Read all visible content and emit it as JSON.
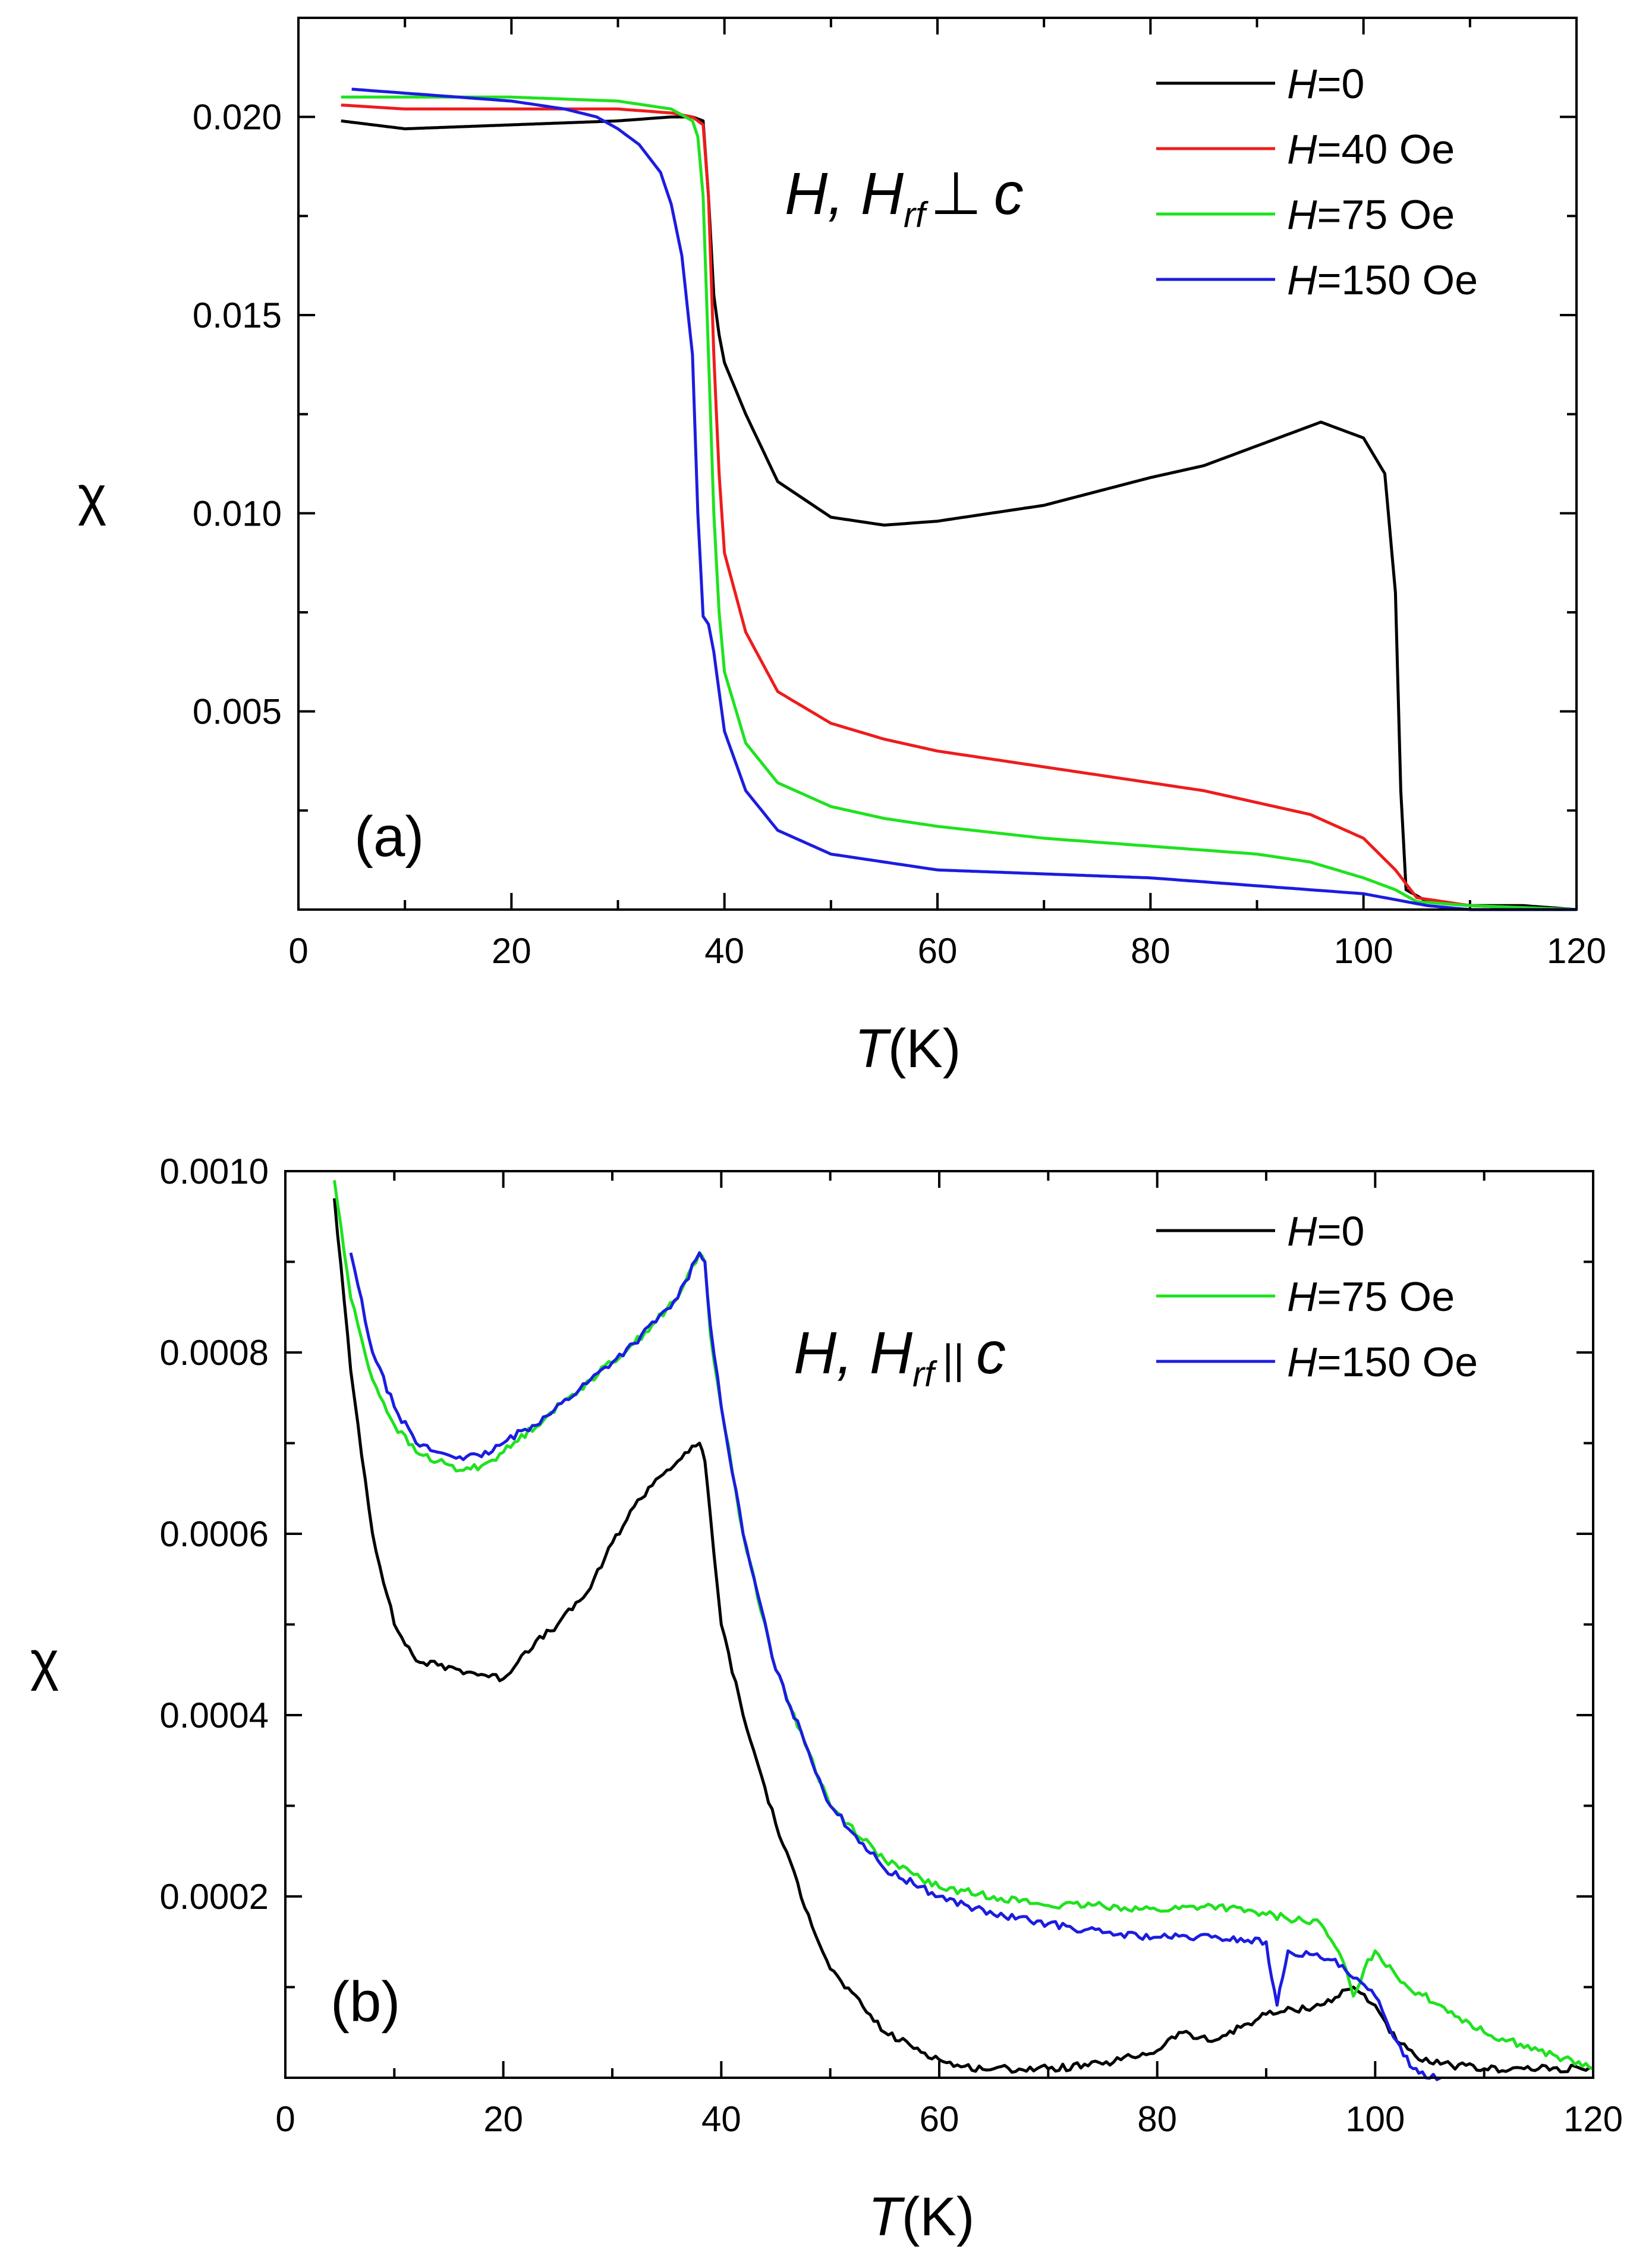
{
  "colors": {
    "black": "#000000",
    "red": "#ee1c1c",
    "green": "#1fe21f",
    "blue": "#1c1ce0"
  },
  "chart_data": [
    {
      "type": "line",
      "panel_label": "(a)",
      "annotation": {
        "H": "H, ",
        "Hsub": "H",
        "sub": "rf",
        "symbol": "⊥",
        "c": "c"
      },
      "xlabel": {
        "italic": "T",
        "rest": "(K)"
      },
      "ylabel": "χ",
      "xlim": [
        0,
        120
      ],
      "ylim": [
        0,
        0.0225
      ],
      "xticks": [
        0,
        20,
        40,
        60,
        80,
        100,
        120
      ],
      "xtick_labels": [
        "0",
        "20",
        "40",
        "60",
        "80",
        "100",
        "120"
      ],
      "yticks": [
        0.005,
        0.01,
        0.015,
        0.02
      ],
      "ytick_labels": [
        "0.005",
        "0.010",
        "0.015",
        "0.020"
      ],
      "legend": {
        "position": "top-right",
        "entries": [
          {
            "italic": "H",
            "text": "=0",
            "color": "#000000"
          },
          {
            "italic": "H",
            "text": "=40 Oe",
            "color": "#ee1c1c"
          },
          {
            "italic": "H",
            "text": "=75 Oe",
            "color": "#1fe21f"
          },
          {
            "italic": "H",
            "text": "=150 Oe",
            "color": "#1c1ce0"
          }
        ]
      },
      "series": [
        {
          "name": "H=0",
          "color": "#000000",
          "x": [
            4,
            10,
            20,
            30,
            35,
            37,
            38,
            38.5,
            39,
            39.5,
            40,
            42,
            45,
            50,
            55,
            60,
            70,
            80,
            85,
            90,
            96,
            100,
            102,
            103,
            103.5,
            104,
            106,
            110,
            115,
            120
          ],
          "y": [
            0.0199,
            0.0197,
            0.0198,
            0.0199,
            0.02,
            0.02,
            0.0199,
            0.018,
            0.0155,
            0.0145,
            0.0138,
            0.0125,
            0.0108,
            0.0099,
            0.0097,
            0.0098,
            0.0102,
            0.0109,
            0.0112,
            0.0117,
            0.0123,
            0.0119,
            0.011,
            0.008,
            0.003,
            0.0005,
            0.0002,
            0.0001,
            0.0001,
            0.0
          ]
        },
        {
          "name": "H=40 Oe",
          "color": "#ee1c1c",
          "x": [
            4,
            10,
            20,
            30,
            35,
            37,
            38,
            38.5,
            39,
            39.5,
            40,
            42,
            45,
            50,
            55,
            60,
            70,
            80,
            85,
            90,
            95,
            100,
            103,
            105,
            110,
            120
          ],
          "y": [
            0.0203,
            0.0202,
            0.0202,
            0.0202,
            0.0201,
            0.02,
            0.0198,
            0.018,
            0.014,
            0.011,
            0.009,
            0.007,
            0.0055,
            0.0047,
            0.0043,
            0.004,
            0.0036,
            0.0032,
            0.003,
            0.0027,
            0.0024,
            0.0018,
            0.001,
            0.0003,
            0.0001,
            0.0
          ]
        },
        {
          "name": "H=75 Oe",
          "color": "#1fe21f",
          "x": [
            4,
            10,
            20,
            30,
            35,
            37,
            37.5,
            38,
            38.5,
            39,
            39.5,
            40,
            42,
            45,
            50,
            55,
            60,
            70,
            80,
            90,
            95,
            100,
            103,
            105,
            110,
            120
          ],
          "y": [
            0.0205,
            0.0205,
            0.0205,
            0.0204,
            0.0202,
            0.0199,
            0.0195,
            0.018,
            0.014,
            0.01,
            0.0075,
            0.006,
            0.0042,
            0.0032,
            0.0026,
            0.0023,
            0.0021,
            0.0018,
            0.0016,
            0.0014,
            0.0012,
            0.0008,
            0.0005,
            0.0002,
            0.0001,
            0.0
          ]
        },
        {
          "name": "H=150 Oe",
          "color": "#1c1ce0",
          "x": [
            5,
            10,
            15,
            20,
            25,
            28,
            30,
            32,
            34,
            35,
            36,
            37,
            37.5,
            38,
            38.5,
            39,
            39.5,
            40,
            42,
            45,
            50,
            55,
            60,
            70,
            80,
            90,
            95,
            100,
            102,
            104,
            106,
            110,
            120
          ],
          "y": [
            0.0207,
            0.0206,
            0.0205,
            0.0204,
            0.0202,
            0.02,
            0.0197,
            0.0193,
            0.0186,
            0.0178,
            0.0165,
            0.014,
            0.01,
            0.0074,
            0.0072,
            0.0065,
            0.0055,
            0.0045,
            0.003,
            0.002,
            0.0014,
            0.0012,
            0.001,
            0.0009,
            0.0008,
            0.0006,
            0.0005,
            0.0004,
            0.0003,
            0.0002,
            0.0001,
            0.0,
            0.0
          ]
        }
      ]
    },
    {
      "type": "line",
      "panel_label": "(b)",
      "annotation": {
        "H": "H, ",
        "Hsub": "H",
        "sub": "rf",
        "symbol": "||",
        "c": "c"
      },
      "xlabel": {
        "italic": "T",
        "rest": "(K)"
      },
      "ylabel": "χ",
      "xlim": [
        0,
        120
      ],
      "ylim": [
        0,
        0.001
      ],
      "xticks": [
        0,
        20,
        40,
        60,
        80,
        100,
        120
      ],
      "xtick_labels": [
        "0",
        "20",
        "40",
        "60",
        "80",
        "100",
        "120"
      ],
      "yticks": [
        0.0002,
        0.0004,
        0.0006,
        0.0008,
        0.001
      ],
      "ytick_labels": [
        "0.0002",
        "0.0004",
        "0.0006",
        "0.0008",
        "0.0010"
      ],
      "legend": {
        "position": "top-right",
        "entries": [
          {
            "italic": "H",
            "text": "=0",
            "color": "#000000"
          },
          {
            "italic": "H",
            "text": "=75 Oe",
            "color": "#1fe21f"
          },
          {
            "italic": "H",
            "text": "=150 Oe",
            "color": "#1c1ce0"
          }
        ]
      },
      "series": [
        {
          "name": "H=0",
          "color": "#000000",
          "x": [
            4.5,
            6,
            8,
            10,
            12,
            14,
            16,
            18,
            20,
            22,
            25,
            28,
            30,
            32,
            34,
            36,
            37,
            38,
            38.5,
            39,
            40,
            42,
            45,
            48,
            50,
            55,
            60,
            62,
            65,
            70,
            75,
            80,
            82,
            85,
            90,
            95,
            98,
            100,
            102,
            104,
            106,
            110,
            115,
            120
          ],
          "y": [
            0.00097,
            0.00078,
            0.0006,
            0.0005,
            0.00046,
            0.000455,
            0.00045,
            0.000445,
            0.00044,
            0.00047,
            0.0005,
            0.00054,
            0.00059,
            0.00063,
            0.00066,
            0.00068,
            0.00069,
            0.0007,
            0.00068,
            0.00062,
            0.0005,
            0.0004,
            0.00028,
            0.00018,
            0.00012,
            5e-05,
            2e-05,
            1.2e-05,
            1e-05,
            1e-05,
            1.5e-05,
            3e-05,
            5e-05,
            4e-05,
            7e-05,
            8e-05,
            0.0001,
            8e-05,
            4e-05,
            2e-05,
            1.5e-05,
            1e-05,
            1e-05,
            1e-05
          ]
        },
        {
          "name": "H=75 Oe",
          "color": "#1fe21f",
          "x": [
            4.5,
            6,
            8,
            10,
            12,
            14,
            16,
            18,
            20,
            24,
            28,
            32,
            36,
            38,
            38.5,
            39,
            40,
            42,
            45,
            48,
            50,
            55,
            60,
            65,
            70,
            75,
            80,
            85,
            90,
            95,
            97,
            98,
            99,
            100,
            103,
            106,
            110,
            115,
            120
          ],
          "y": [
            0.00099,
            0.00086,
            0.00077,
            0.00072,
            0.00069,
            0.00068,
            0.00067,
            0.000675,
            0.00069,
            0.00073,
            0.00077,
            0.00081,
            0.00086,
            0.00091,
            0.0009,
            0.00082,
            0.00074,
            0.0006,
            0.00045,
            0.00036,
            0.0003,
            0.00024,
            0.00021,
            0.0002,
            0.00019,
            0.00019,
            0.000185,
            0.00019,
            0.00018,
            0.00017,
            0.00013,
            9e-05,
            0.00012,
            0.00014,
            0.0001,
            8e-05,
            5e-05,
            3e-05,
            1e-05
          ]
        },
        {
          "name": "H=150 Oe",
          "color": "#1c1ce0",
          "x": [
            6,
            8,
            10,
            12,
            14,
            16,
            18,
            20,
            24,
            28,
            32,
            36,
            38,
            38.5,
            39,
            40,
            42,
            45,
            48,
            50,
            55,
            60,
            65,
            70,
            75,
            80,
            85,
            90,
            90.5,
            91,
            91.5,
            92,
            96,
            98,
            100,
            102,
            103.5,
            104,
            106
          ],
          "y": [
            0.00091,
            0.0008,
            0.00074,
            0.0007,
            0.00069,
            0.000685,
            0.000685,
            0.0007,
            0.00073,
            0.00077,
            0.00081,
            0.00086,
            0.00091,
            0.0009,
            0.00083,
            0.00074,
            0.0006,
            0.00045,
            0.00036,
            0.0003,
            0.00023,
            0.0002,
            0.00018,
            0.00017,
            0.00016,
            0.000155,
            0.000155,
            0.00015,
            0.00011,
            8e-05,
            0.00011,
            0.00014,
            0.00013,
            0.00011,
            9e-05,
            4e-05,
            1e-05,
            5e-06,
            0.0
          ]
        }
      ]
    }
  ]
}
